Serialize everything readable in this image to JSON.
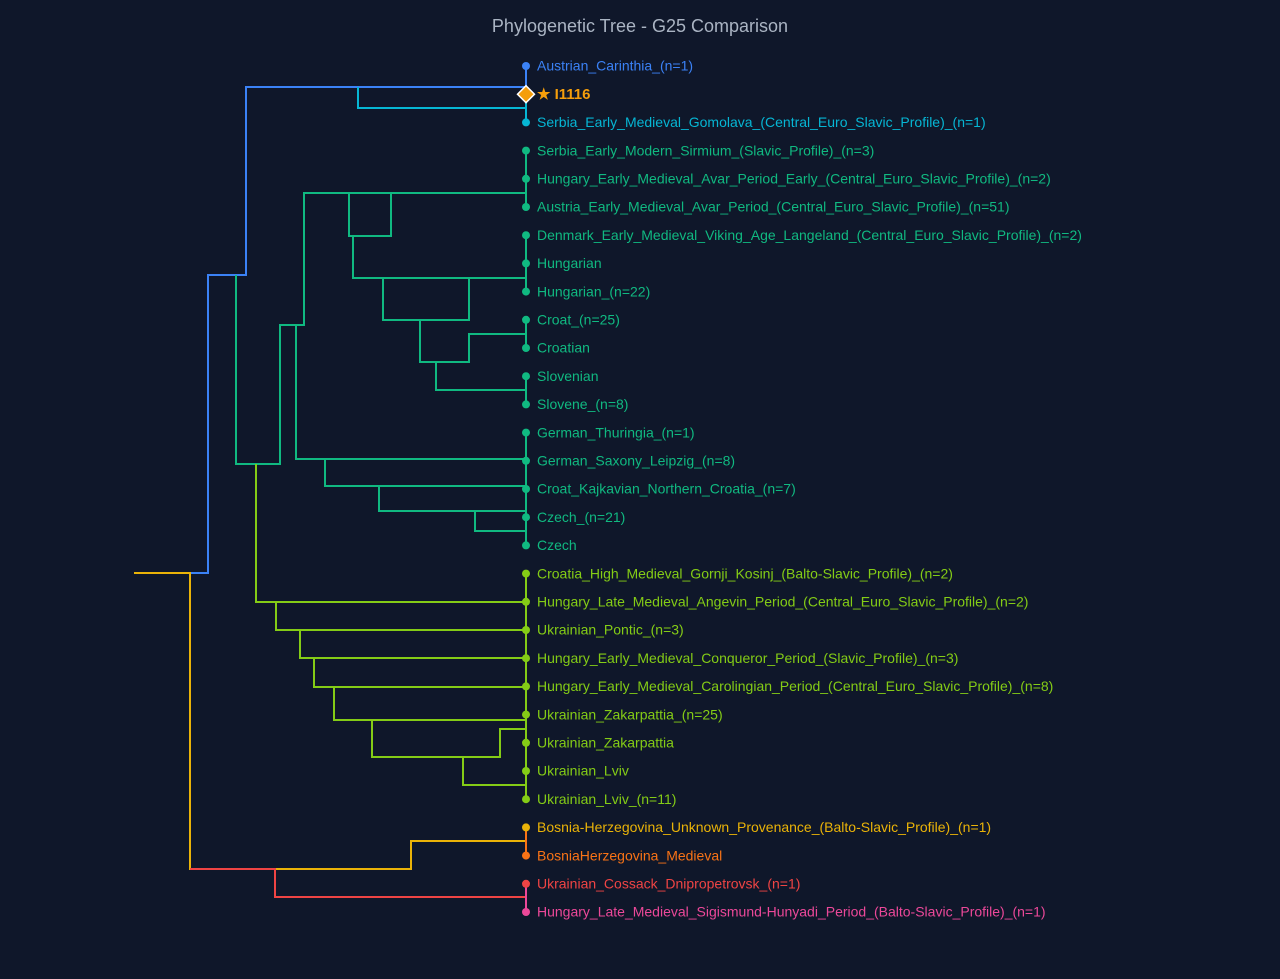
{
  "title": "Phylogenetic Tree - G25 Comparison",
  "leaves": [
    {
      "label": "Austrian_Carinthia_(n=1)",
      "color": "#3b82f6"
    },
    {
      "label": "★ I1116",
      "color": "#f59e0b",
      "highlight": true
    },
    {
      "label": "Serbia_Early_Medieval_Gomolava_(Central_Euro_Slavic_Profile)_(n=1)",
      "color": "#06b6d4"
    },
    {
      "label": "Serbia_Early_Modern_Sirmium_(Slavic_Profile)_(n=3)",
      "color": "#10b981"
    },
    {
      "label": "Hungary_Early_Medieval_Avar_Period_Early_(Central_Euro_Slavic_Profile)_(n=2)",
      "color": "#10b981"
    },
    {
      "label": "Austria_Early_Medieval_Avar_Period_(Central_Euro_Slavic_Profile)_(n=51)",
      "color": "#10b981"
    },
    {
      "label": "Denmark_Early_Medieval_Viking_Age_Langeland_(Central_Euro_Slavic_Profile)_(n=2)",
      "color": "#10b981"
    },
    {
      "label": "Hungarian",
      "color": "#10b981"
    },
    {
      "label": "Hungarian_(n=22)",
      "color": "#10b981"
    },
    {
      "label": "Croat_(n=25)",
      "color": "#10b981"
    },
    {
      "label": "Croatian",
      "color": "#10b981"
    },
    {
      "label": "Slovenian",
      "color": "#10b981"
    },
    {
      "label": "Slovene_(n=8)",
      "color": "#10b981"
    },
    {
      "label": "German_Thuringia_(n=1)",
      "color": "#10b981"
    },
    {
      "label": "German_Saxony_Leipzig_(n=8)",
      "color": "#10b981"
    },
    {
      "label": "Croat_Kajkavian_Northern_Croatia_(n=7)",
      "color": "#10b981"
    },
    {
      "label": "Czech_(n=21)",
      "color": "#10b981"
    },
    {
      "label": "Czech",
      "color": "#10b981"
    },
    {
      "label": "Croatia_High_Medieval_Gornji_Kosinj_(Balto-Slavic_Profile)_(n=2)",
      "color": "#84cc16"
    },
    {
      "label": "Hungary_Late_Medieval_Angevin_Period_(Central_Euro_Slavic_Profile)_(n=2)",
      "color": "#84cc16"
    },
    {
      "label": "Ukrainian_Pontic_(n=3)",
      "color": "#84cc16"
    },
    {
      "label": "Hungary_Early_Medieval_Conqueror_Period_(Slavic_Profile)_(n=3)",
      "color": "#84cc16"
    },
    {
      "label": "Hungary_Early_Medieval_Carolingian_Period_(Central_Euro_Slavic_Profile)_(n=8)",
      "color": "#84cc16"
    },
    {
      "label": "Ukrainian_Zakarpattia_(n=25)",
      "color": "#84cc16"
    },
    {
      "label": "Ukrainian_Zakarpattia",
      "color": "#84cc16"
    },
    {
      "label": "Ukrainian_Lviv",
      "color": "#84cc16"
    },
    {
      "label": "Ukrainian_Lviv_(n=11)",
      "color": "#84cc16"
    },
    {
      "label": "Bosnia-Herzegovina_Unknown_Provenance_(Balto-Slavic_Profile)_(n=1)",
      "color": "#eab308"
    },
    {
      "label": "BosniaHerzegovina_Medieval",
      "color": "#f97316"
    },
    {
      "label": "Ukrainian_Cossack_Dnipropetrovsk_(n=1)",
      "color": "#ef4444"
    },
    {
      "label": "Hungary_Late_Medieval_Sigismund-Hunyadi_Period_(Balto-Slavic_Profile)_(n=1)",
      "color": "#ec4899"
    }
  ]
}
